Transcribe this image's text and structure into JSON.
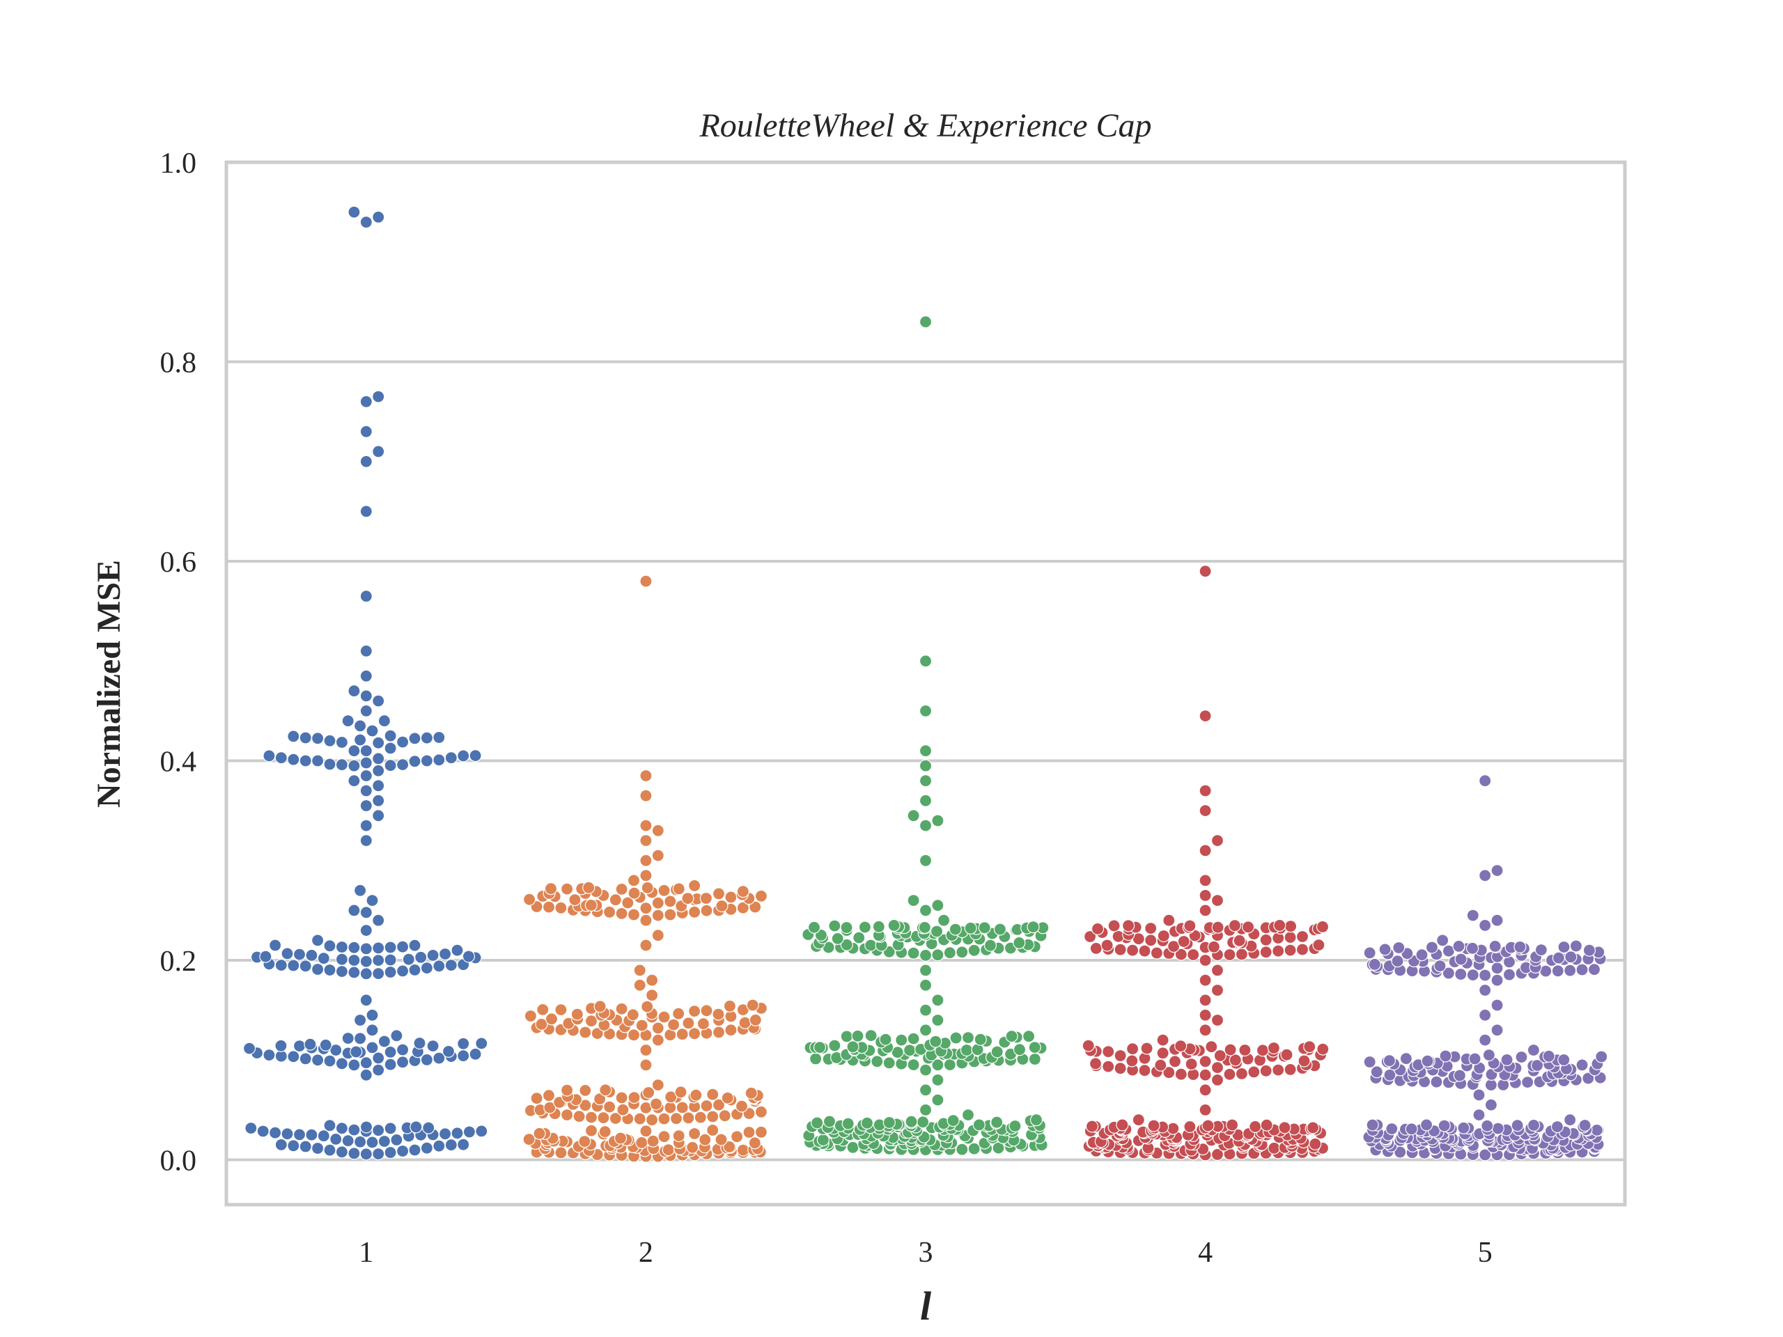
{
  "chart_data": {
    "type": "scatter",
    "subtype": "swarm",
    "title": "RouletteWheel & Experience Cap",
    "xlabel": "l",
    "ylabel": "Normalized MSE",
    "categories": [
      "1",
      "2",
      "3",
      "4",
      "5"
    ],
    "ylim": [
      -0.045,
      1.0
    ],
    "yticks": [
      "0.0",
      "0.2",
      "0.4",
      "0.6",
      "0.8",
      "1.0"
    ],
    "grid": "horizontal",
    "legend": "none",
    "series": [
      {
        "category": "1",
        "color": "#4c72b0",
        "values": [
          0.95,
          0.945,
          0.94,
          0.765,
          0.76,
          0.73,
          0.71,
          0.7,
          0.65,
          0.565,
          0.51,
          0.485,
          0.47,
          0.46,
          0.465,
          0.45,
          0.44,
          0.44,
          0.435,
          0.43,
          0.425,
          0.41,
          0.41,
          0.405,
          0.4,
          0.4,
          0.395,
          0.39,
          0.385,
          0.38,
          0.375,
          0.37,
          0.36,
          0.355,
          0.345,
          0.335,
          0.32,
          0.27,
          0.26,
          0.25,
          0.248,
          0.24,
          0.23,
          0.22,
          0.215,
          0.21,
          0.205,
          0.2,
          0.16,
          0.145,
          0.14,
          0.13,
          0.115,
          0.11,
          0.105,
          0.1,
          0.095,
          0.09,
          0.085,
          0.03,
          0.025,
          0.02,
          0.018
        ],
        "group_counts": [
          [
            0.41,
            26
          ],
          [
            0.2,
            40
          ],
          [
            0.11,
            38
          ],
          [
            0.02,
            42
          ]
        ]
      },
      {
        "category": "2",
        "color": "#dd8452",
        "values": [
          0.58,
          0.385,
          0.365,
          0.335,
          0.33,
          0.32,
          0.305,
          0.3,
          0.285,
          0.28,
          0.27,
          0.265,
          0.255,
          0.25,
          0.245,
          0.24,
          0.225,
          0.215,
          0.19,
          0.18,
          0.175,
          0.165,
          0.155,
          0.145,
          0.14,
          0.135,
          0.125,
          0.12,
          0.11,
          0.095,
          0.075,
          0.07,
          0.065,
          0.06,
          0.055,
          0.05,
          0.045,
          0.04,
          0.02,
          0.015,
          0.012,
          0.01
        ],
        "group_counts": [
          [
            0.26,
            55
          ],
          [
            0.14,
            55
          ],
          [
            0.055,
            60
          ],
          [
            0.015,
            80
          ]
        ]
      },
      {
        "category": "3",
        "color": "#55a868",
        "values": [
          0.84,
          0.5,
          0.45,
          0.41,
          0.395,
          0.38,
          0.36,
          0.345,
          0.34,
          0.335,
          0.3,
          0.26,
          0.255,
          0.25,
          0.24,
          0.235,
          0.23,
          0.225,
          0.22,
          0.215,
          0.205,
          0.19,
          0.175,
          0.16,
          0.15,
          0.14,
          0.13,
          0.12,
          0.115,
          0.11,
          0.105,
          0.1,
          0.09,
          0.08,
          0.07,
          0.06,
          0.05,
          0.045,
          0.04,
          0.035,
          0.03,
          0.025,
          0.02,
          0.015,
          0.01
        ],
        "group_counts": [
          [
            0.22,
            75
          ],
          [
            0.11,
            70
          ],
          [
            0.025,
            130
          ]
        ]
      },
      {
        "category": "4",
        "color": "#c44e52",
        "values": [
          0.59,
          0.445,
          0.37,
          0.35,
          0.32,
          0.31,
          0.28,
          0.265,
          0.26,
          0.25,
          0.24,
          0.235,
          0.225,
          0.215,
          0.21,
          0.2,
          0.19,
          0.18,
          0.17,
          0.16,
          0.145,
          0.14,
          0.13,
          0.12,
          0.11,
          0.1,
          0.09,
          0.08,
          0.07,
          0.05,
          0.04,
          0.035,
          0.03,
          0.025,
          0.02,
          0.015,
          0.01,
          0.005
        ],
        "group_counts": [
          [
            0.22,
            70
          ],
          [
            0.1,
            60
          ],
          [
            0.02,
            150
          ]
        ]
      },
      {
        "category": "5",
        "color": "#8172b3",
        "values": [
          0.38,
          0.29,
          0.285,
          0.245,
          0.24,
          0.235,
          0.22,
          0.21,
          0.205,
          0.2,
          0.19,
          0.18,
          0.17,
          0.155,
          0.145,
          0.13,
          0.12,
          0.11,
          0.105,
          0.1,
          0.095,
          0.09,
          0.085,
          0.075,
          0.065,
          0.055,
          0.045,
          0.04,
          0.035,
          0.03,
          0.025,
          0.02,
          0.015,
          0.01,
          0.005
        ],
        "group_counts": [
          [
            0.2,
            70
          ],
          [
            0.09,
            75
          ],
          [
            0.02,
            150
          ]
        ]
      }
    ]
  }
}
